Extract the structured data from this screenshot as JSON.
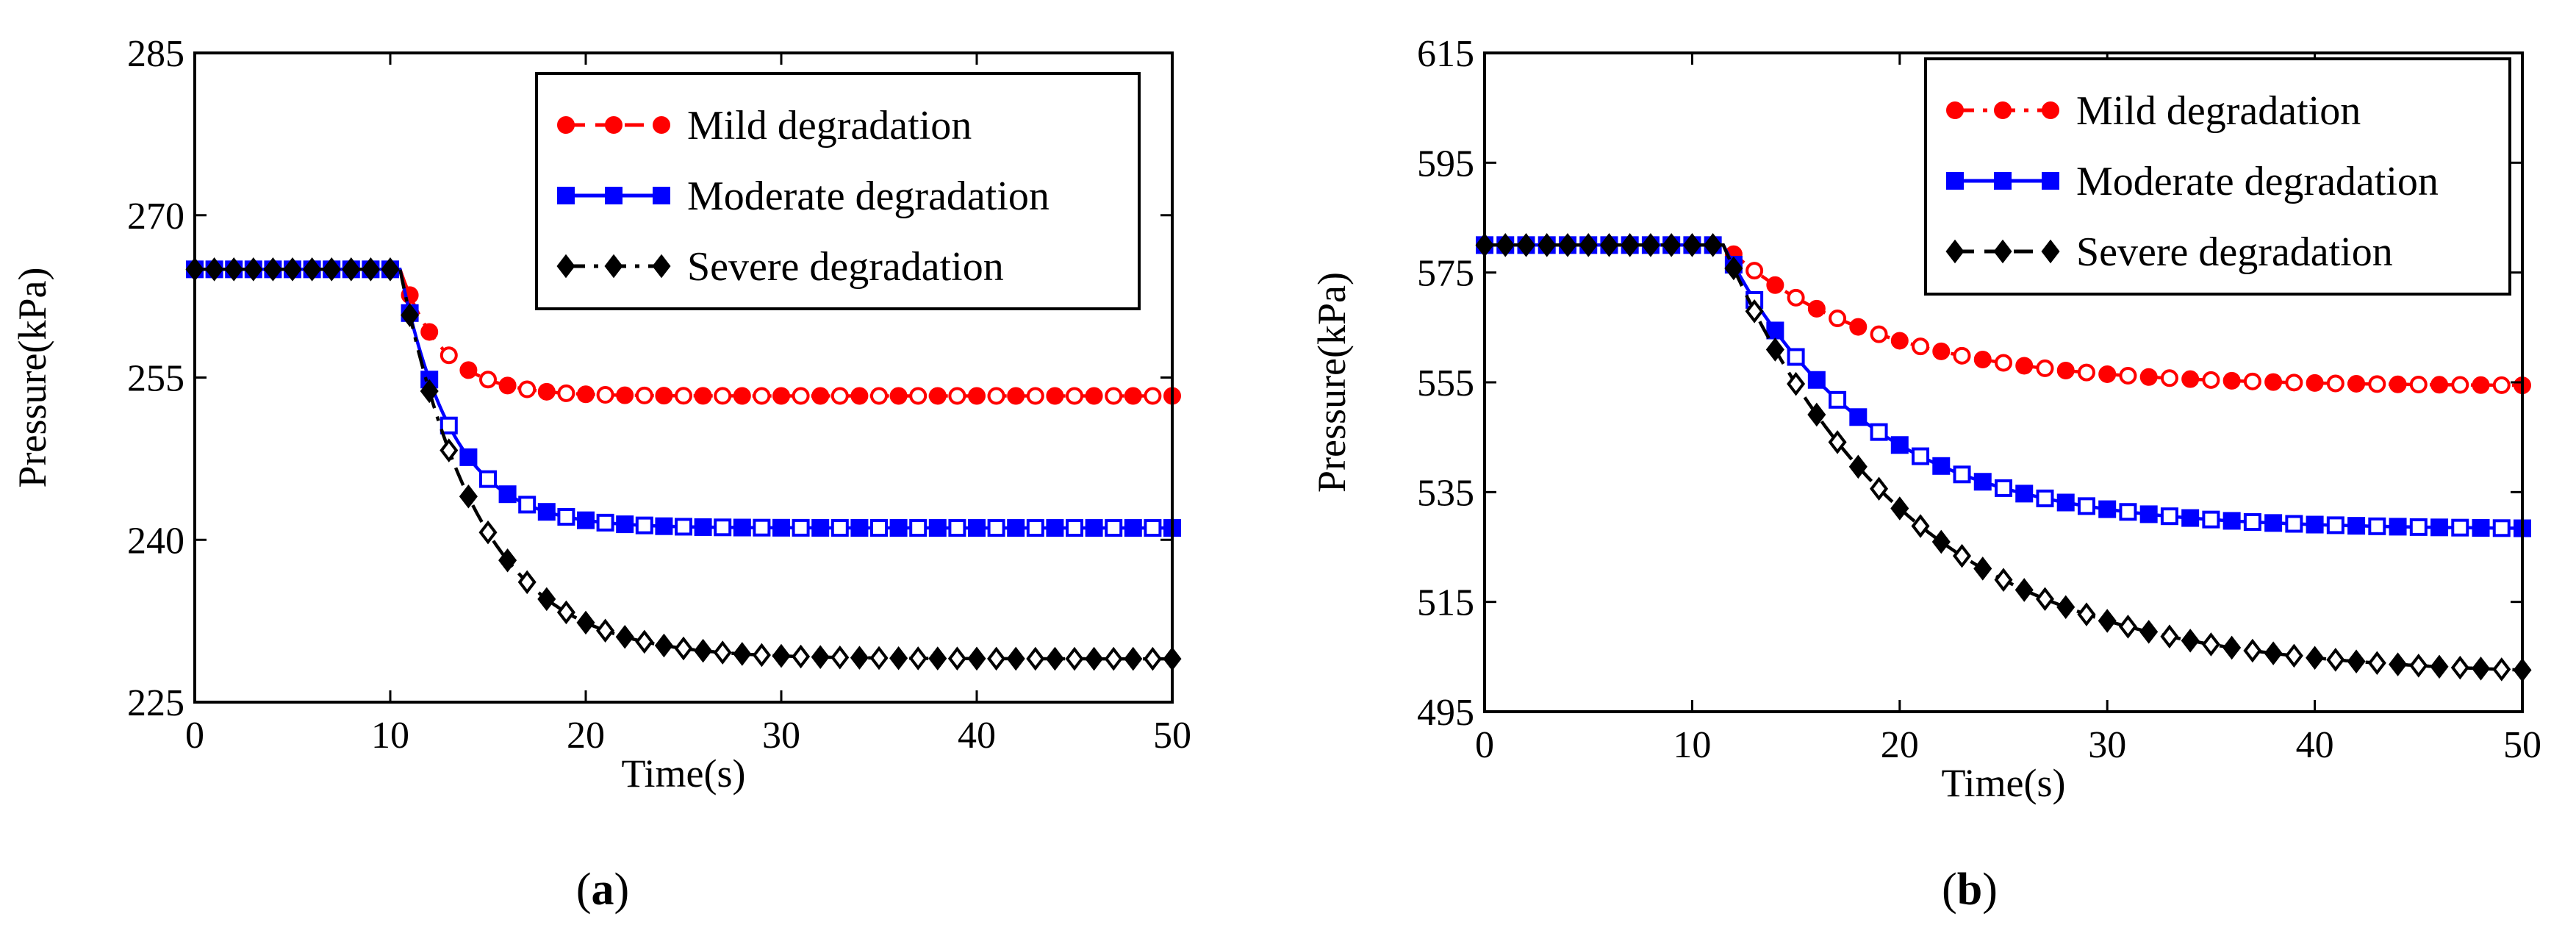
{
  "chart_data": [
    {
      "type": "line",
      "panel_label": "a",
      "xlabel": "Time(s)",
      "ylabel": "Pressure(kPa)",
      "xlim": [
        0,
        50
      ],
      "ylim": [
        225,
        285
      ],
      "xticks": [
        0,
        10,
        20,
        30,
        40,
        50
      ],
      "yticks": [
        225,
        240,
        255,
        270,
        285
      ],
      "legend_position": "top-right",
      "series": [
        {
          "name": "Mild degradation",
          "color": "#ff0000",
          "line_style": "dashed",
          "marker": "circle",
          "start": 265,
          "end": 253.3,
          "tau": 2.2
        },
        {
          "name": "Moderate degradation",
          "color": "#0000ff",
          "line_style": "solid",
          "marker": "square",
          "start": 265,
          "end": 241.1,
          "tau": 2.7
        },
        {
          "name": "Severe degradation",
          "color": "#000000",
          "line_style": "dash-dot",
          "marker": "diamond",
          "start": 265,
          "end": 229.0,
          "tau": 4.0
        }
      ],
      "step_time": 10.5
    },
    {
      "type": "line",
      "panel_label": "b",
      "xlabel": "Time(s)",
      "ylabel": "Pressure(kPa)",
      "xlim": [
        0,
        50
      ],
      "ylim": [
        495,
        615
      ],
      "xticks": [
        0,
        10,
        20,
        30,
        40,
        50
      ],
      "yticks": [
        495,
        515,
        535,
        555,
        575,
        595,
        615
      ],
      "legend_position": "top-right",
      "series": [
        {
          "name": "Mild degradation",
          "color": "#ff0000",
          "line_style": "dash-dot",
          "marker": "circle",
          "start": 580,
          "end": 554.3,
          "tau": 7.5
        },
        {
          "name": "Moderate degradation",
          "color": "#0000ff",
          "line_style": "solid",
          "marker": "square",
          "start": 580,
          "end": 528.2,
          "tau": 7.0
        },
        {
          "name": "Severe degradation",
          "color": "#000000",
          "line_style": "dashed",
          "marker": "diamond",
          "start": 580,
          "end": 501.5,
          "tau": 9.0
        }
      ],
      "step_time": 11.5
    }
  ]
}
